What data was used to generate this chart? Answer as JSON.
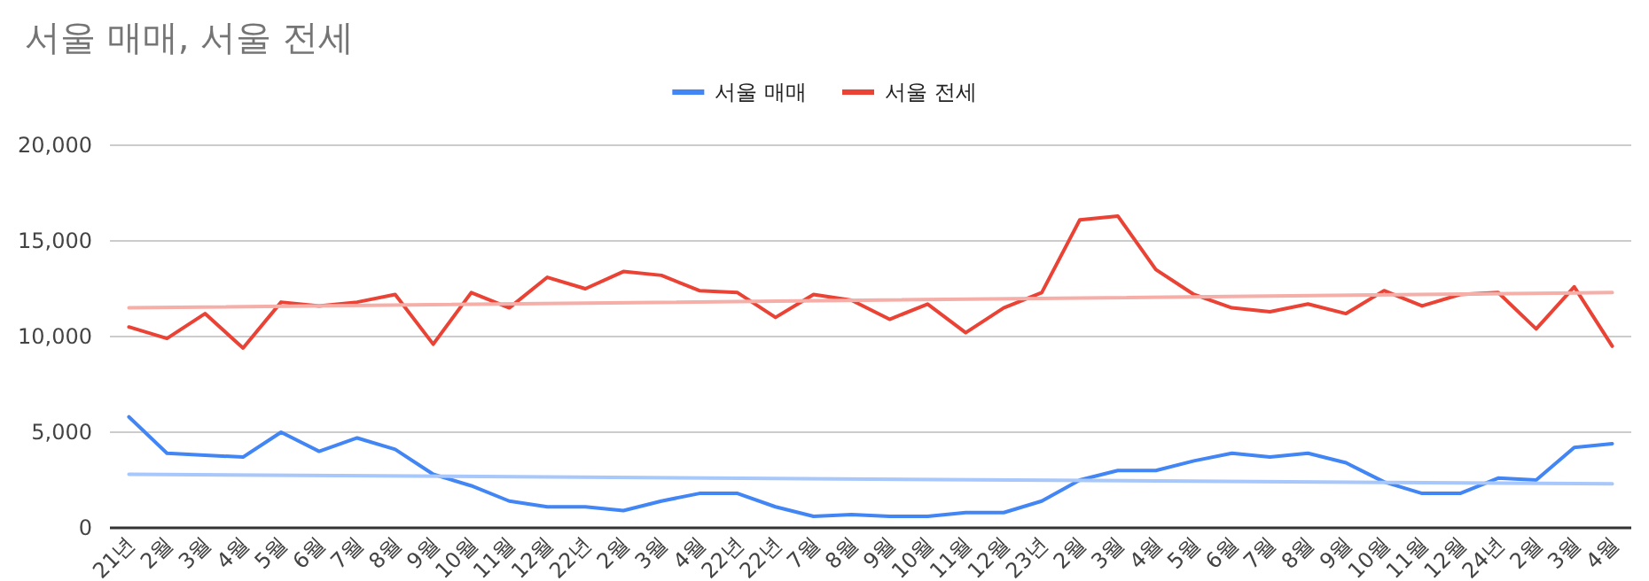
{
  "chart_data": {
    "type": "line",
    "title": "서울 매매, 서울 전세",
    "categories": [
      "21년",
      "2월",
      "3월",
      "4월",
      "5월",
      "6월",
      "7월",
      "8월",
      "9월",
      "10월",
      "11월",
      "12월",
      "22년",
      "2월",
      "3월",
      "4월",
      "22년",
      "22년",
      "7월",
      "8월",
      "9월",
      "10월",
      "11월",
      "12월",
      "23년",
      "2월",
      "3월",
      "4월",
      "5월",
      "6월",
      "7월",
      "8월",
      "9월",
      "10월",
      "11월",
      "12월",
      "24년",
      "2월",
      "3월",
      "4월"
    ],
    "series": [
      {
        "name": "서울 매매",
        "color": "#4285f4",
        "values": [
          5800,
          3900,
          3800,
          3700,
          5000,
          4000,
          4700,
          4100,
          2800,
          2200,
          1400,
          1100,
          1100,
          900,
          1400,
          1800,
          1800,
          1100,
          600,
          700,
          600,
          600,
          800,
          800,
          1400,
          2500,
          3000,
          3000,
          3500,
          3900,
          3700,
          3900,
          3400,
          2400,
          1800,
          1800,
          2600,
          2500,
          4200,
          4400
        ]
      },
      {
        "name": "서울 전세",
        "color": "#ea4335",
        "values": [
          10500,
          9900,
          11200,
          9400,
          11800,
          11600,
          11800,
          12200,
          9600,
          12300,
          11500,
          13100,
          12500,
          13400,
          13200,
          12400,
          12300,
          11000,
          12200,
          11900,
          10900,
          11700,
          10200,
          11500,
          12300,
          16100,
          16300,
          13500,
          12200,
          11500,
          11300,
          11700,
          11200,
          12400,
          11600,
          12200,
          12300,
          10400,
          12600,
          9500
        ]
      },
      {
        "type": "line",
        "color": "#a8c7fa",
        "values": [
          2800,
          null,
          null,
          null,
          null,
          null,
          null,
          null,
          null,
          null,
          null,
          null,
          null,
          null,
          null,
          null,
          null,
          null,
          null,
          null,
          null,
          null,
          null,
          null,
          null,
          null,
          null,
          null,
          null,
          null,
          null,
          null,
          null,
          null,
          null,
          null,
          null,
          null,
          null,
          2300
        ]
      },
      {
        "type": "line",
        "color": "#f5aea8",
        "values": [
          11500,
          null,
          null,
          null,
          null,
          null,
          null,
          null,
          null,
          null,
          null,
          null,
          null,
          null,
          null,
          null,
          null,
          null,
          null,
          null,
          null,
          null,
          null,
          null,
          null,
          null,
          null,
          null,
          null,
          null,
          null,
          null,
          null,
          null,
          null,
          null,
          null,
          null,
          null,
          12300
        ]
      }
    ],
    "ylim": [
      0,
      20000
    ],
    "yticks": [
      {
        "value": 0,
        "label": "0"
      },
      {
        "value": 5000,
        "label": "5,000"
      },
      {
        "value": 10000,
        "label": "10,000"
      },
      {
        "value": 15000,
        "label": "15,000"
      },
      {
        "value": 20000,
        "label": "20,000"
      }
    ],
    "grid": "y",
    "legend": "top",
    "line_style": "solid",
    "marker": "none"
  }
}
